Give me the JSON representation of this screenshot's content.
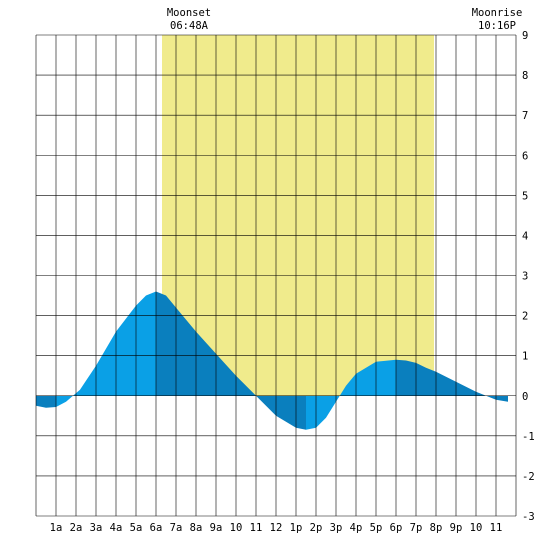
{
  "chart_data": {
    "type": "area",
    "title": "",
    "xlabel": "",
    "ylabel": "",
    "x_tick_labels": [
      "1a",
      "2a",
      "3a",
      "4a",
      "5a",
      "6a",
      "7a",
      "8a",
      "9a",
      "10",
      "11",
      "12",
      "1p",
      "2p",
      "3p",
      "4p",
      "5p",
      "6p",
      "7p",
      "8p",
      "9p",
      "10",
      "11"
    ],
    "x_range_hours": [
      0,
      24
    ],
    "ylim": [
      -3,
      9
    ],
    "y_ticks": [
      -3,
      -2,
      -1,
      0,
      1,
      2,
      3,
      4,
      5,
      6,
      7,
      8,
      9
    ],
    "grid": true,
    "daylight_band_hours": [
      6.3,
      19.9
    ],
    "annotations": [
      {
        "label": "Moonset",
        "time": "06:48A",
        "position": "top-left"
      },
      {
        "label": "Moonrise",
        "time": "10:16P",
        "position": "top-right"
      }
    ],
    "series": [
      {
        "x": [
          0,
          0.5,
          1.0,
          1.5,
          2.2,
          3,
          4,
          5,
          5.5,
          6.0,
          6.5,
          7,
          8,
          9,
          10,
          11,
          12,
          13,
          13.5,
          14,
          14.5,
          15,
          15.5,
          16,
          17,
          18,
          18.5,
          19,
          19.5,
          20,
          21,
          22,
          23,
          23.6
        ],
        "values": [
          -0.25,
          -0.3,
          -0.28,
          -0.15,
          0.15,
          0.75,
          1.6,
          2.25,
          2.5,
          2.6,
          2.5,
          2.2,
          1.6,
          1.05,
          0.5,
          0.0,
          -0.5,
          -0.8,
          -0.85,
          -0.8,
          -0.55,
          -0.15,
          0.25,
          0.55,
          0.85,
          0.9,
          0.88,
          0.82,
          0.7,
          0.6,
          0.35,
          0.1,
          -0.1,
          -0.15
        ]
      }
    ],
    "extrema_hours": [
      1.0,
      6.0,
      13.5,
      18.0
    ],
    "colors": {
      "daylight": "#f0eb8c",
      "tide_fill": "#0aa0e6",
      "tide_dark": "#0a7fbe",
      "grid": "#000000"
    }
  }
}
